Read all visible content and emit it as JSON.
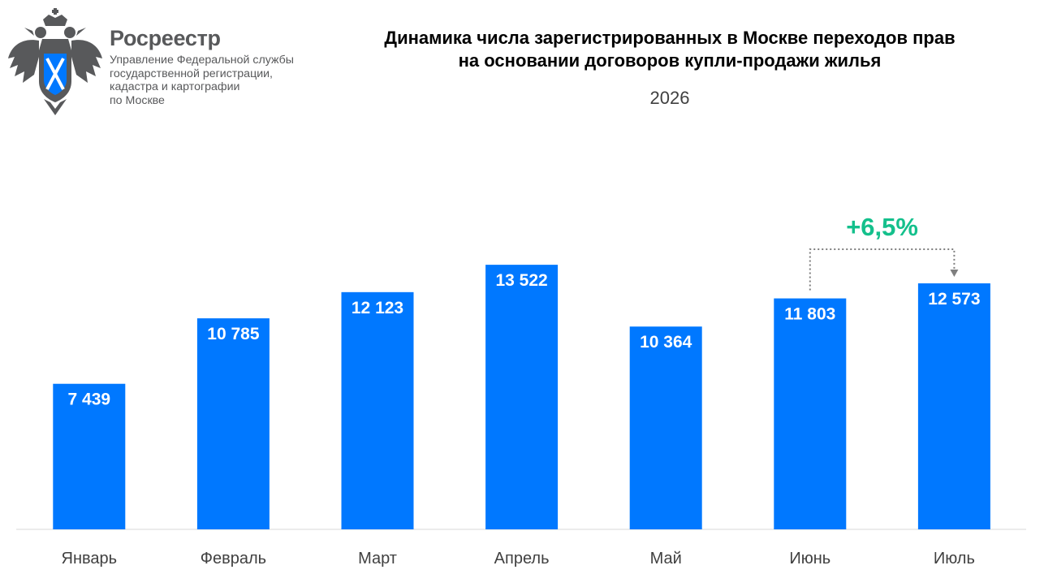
{
  "header": {
    "org_name": "Росреестр",
    "org_desc": "Управление Федеральной службы\nгосударственной регистрации,\nкадастра и картографии\nпо Москве",
    "logo_icon": "double-headed-eagle-emblem-icon"
  },
  "chart_data": {
    "type": "bar",
    "title": "Динамика числа зарегистрированных в Москве переходов прав\nна основании договоров купли-продажи жилья",
    "subtitle": "2026",
    "categories": [
      "Январь",
      "Февраль",
      "Март",
      "Апрель",
      "Май",
      "Июнь",
      "Июль"
    ],
    "values": [
      7439,
      10785,
      12123,
      13522,
      10364,
      11803,
      12573
    ],
    "value_labels": [
      "7 439",
      "10 785",
      "12 123",
      "13 522",
      "10 364",
      "11 803",
      "12 573"
    ],
    "ylim": [
      0,
      20000
    ],
    "grid": false,
    "legend": "none",
    "annotation": {
      "text": "+6,5%",
      "from_category": "Июнь",
      "to_category": "Июль"
    },
    "colors": {
      "bar": "#0078ff",
      "annotation": "#14c08c",
      "arrow": "#7f7f7f",
      "baseline": "#d9d9d9",
      "tick_label": "#404040"
    }
  }
}
